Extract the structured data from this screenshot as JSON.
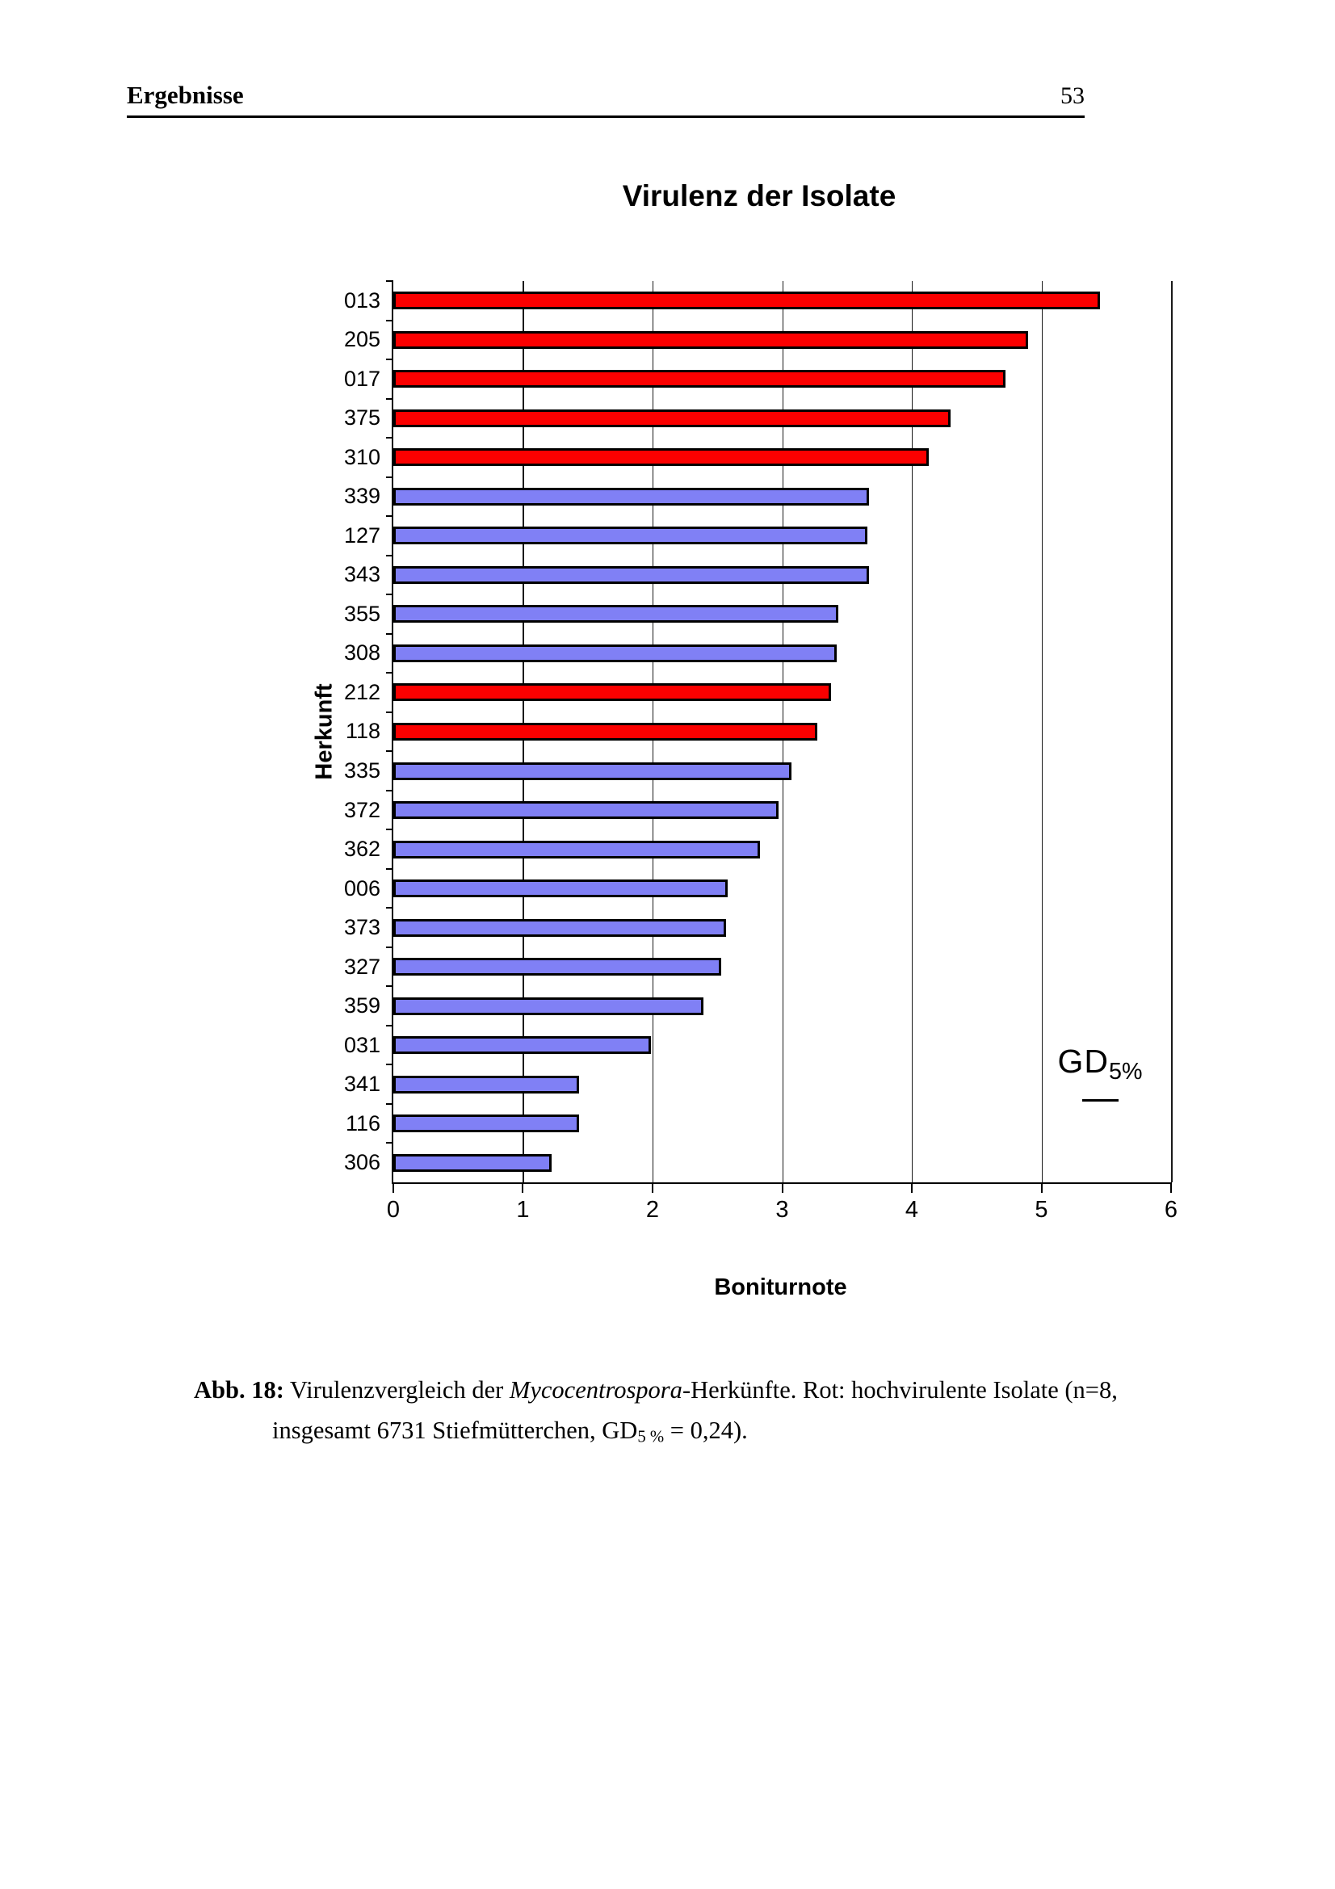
{
  "page": {
    "section": "Ergebnisse",
    "number": "53"
  },
  "chart_data": {
    "type": "bar",
    "orientation": "horizontal",
    "title": "Virulenz der Isolate",
    "xlabel": "Boniturnote",
    "ylabel": "Herkunft",
    "xlim": [
      0,
      6
    ],
    "xticks": [
      "0",
      "1",
      "2",
      "3",
      "4",
      "5",
      "6"
    ],
    "grid": true,
    "legend": {
      "text": "GD",
      "sub": "5%"
    },
    "categories": [
      "013",
      "205",
      "017",
      "375",
      "310",
      "339",
      "127",
      "343",
      "355",
      "308",
      "212",
      "118",
      "335",
      "372",
      "362",
      "006",
      "373",
      "327",
      "359",
      "031",
      "341",
      "116",
      "306"
    ],
    "values": [
      5.45,
      4.9,
      4.72,
      4.3,
      4.13,
      3.67,
      3.66,
      3.67,
      3.43,
      3.42,
      3.38,
      3.27,
      3.07,
      2.97,
      2.83,
      2.58,
      2.57,
      2.53,
      2.39,
      1.99,
      1.43,
      1.43,
      1.22
    ],
    "colors": [
      "red",
      "red",
      "red",
      "red",
      "red",
      "blue",
      "blue",
      "blue",
      "blue",
      "blue",
      "red",
      "red",
      "blue",
      "blue",
      "blue",
      "blue",
      "blue",
      "blue",
      "blue",
      "blue",
      "blue",
      "blue",
      "blue"
    ],
    "palette": {
      "red": "#fb0000",
      "blue": "#8080f5",
      "bar_border": "#000000"
    }
  },
  "caption": {
    "label": "Abb. 18:",
    "line1_text": " Virulenzvergleich der ",
    "line1_italic": "Mycocentrospora",
    "line1_rest": "-Herkünfte. Rot: hochvirulente Isolate (n=8,",
    "line2_text": "insgesamt 6731 Stiefmütterchen, GD",
    "line2_sub": "5 %",
    "line2_rest": " = 0,24)."
  }
}
